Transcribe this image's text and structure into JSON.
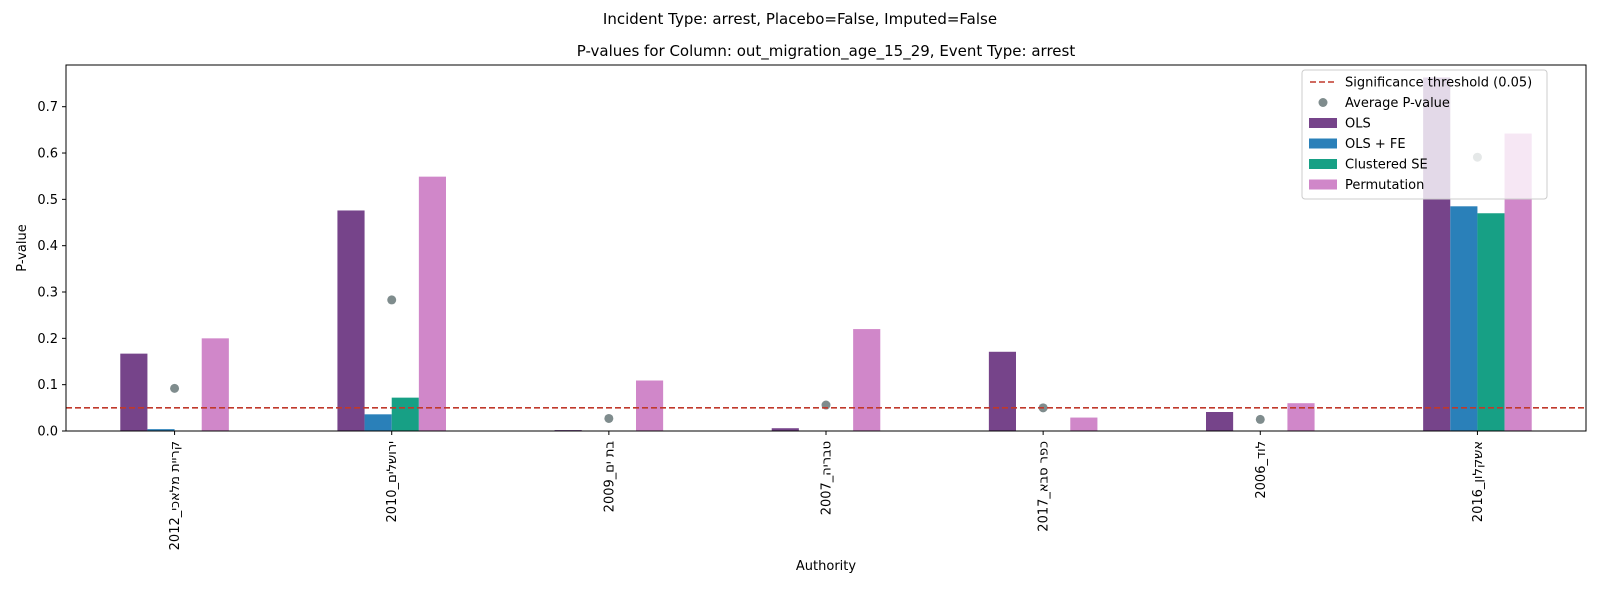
{
  "figure": {
    "suptitle": "Incident Type: arrest, Placebo=False, Imputed=False"
  },
  "chart_data": {
    "type": "bar",
    "title": "P-values for Column: out_migration_age_15_29, Event Type: arrest",
    "xlabel": "Authority",
    "ylabel": "P-value",
    "ylim": [
      0,
      0.79
    ],
    "yticks": [
      0.0,
      0.1,
      0.2,
      0.3,
      0.4,
      0.5,
      0.6,
      0.7
    ],
    "grid": false,
    "legend_position": "top-right",
    "categories": [
      "קריית מלאכי_2012",
      "ירושלים_2010",
      "בת ים_2009",
      "טבריה_2007",
      "כפר סבא_2017",
      "לוד_2006",
      "אשקלון_2016"
    ],
    "series": [
      {
        "name": "OLS",
        "color": "#76448a",
        "values": [
          0.167,
          0.476,
          0.002,
          0.006,
          0.171,
          0.041,
          0.763
        ]
      },
      {
        "name": "OLS + FE",
        "color": "#2a80b9",
        "values": [
          0.004,
          0.036,
          0.0,
          0.0,
          0.0,
          0.0,
          0.485
        ]
      },
      {
        "name": "Clustered SE",
        "color": "#17a085",
        "values": [
          0.0,
          0.072,
          0.0,
          0.0,
          0.0,
          0.0,
          0.47
        ]
      },
      {
        "name": "Permutation",
        "color": "#d087c9",
        "values": [
          0.2,
          0.549,
          0.109,
          0.22,
          0.029,
          0.06,
          0.642
        ]
      }
    ],
    "average_pvalue": {
      "name": "Average P-value",
      "color": "#7f8c8d",
      "values": [
        0.092,
        0.283,
        0.027,
        0.056,
        0.05,
        0.025,
        0.591
      ]
    },
    "threshold": {
      "name": "Significance threshold (0.05)",
      "value": 0.05,
      "color": "#c0392b"
    }
  }
}
